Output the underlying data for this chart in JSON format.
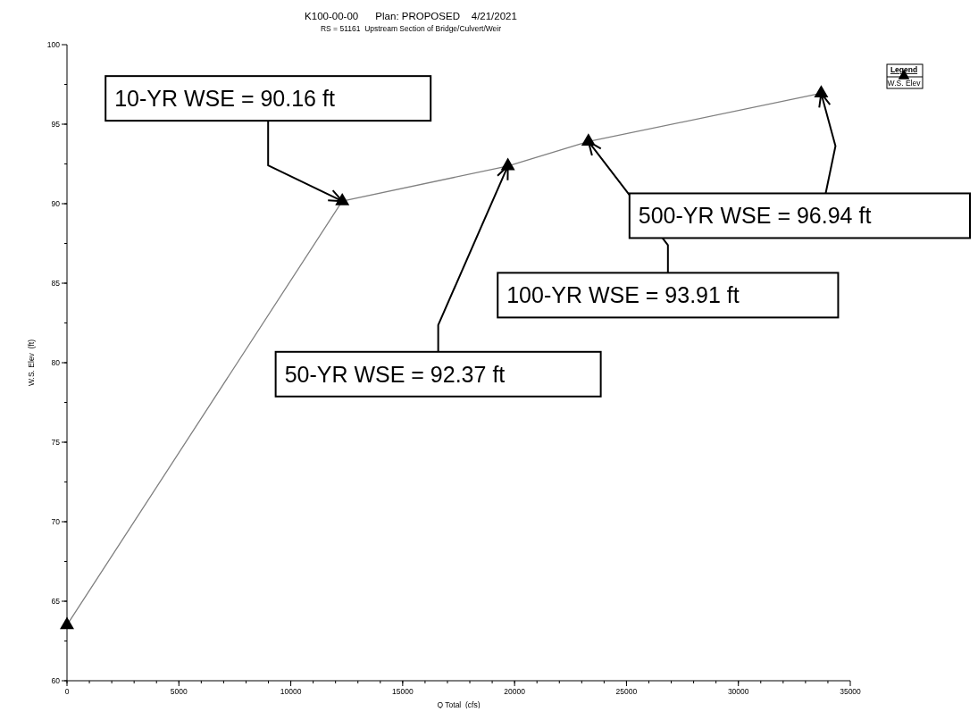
{
  "chart_data": {
    "type": "line",
    "title": "K100-00-00      Plan: PROPOSED    4/21/2021",
    "subtitle": "RS = 51161  Upstream Section of Bridge/Culvert/Weir",
    "xlabel": "Q Total  (cfs)",
    "ylabel": "W.S. Elev  (ft)",
    "x": [
      0,
      12300,
      19700,
      23300,
      33700
    ],
    "series": [
      {
        "name": "W.S. Elev",
        "color": "#808080",
        "values": [
          63.5,
          90.16,
          92.37,
          93.91,
          96.94
        ]
      }
    ],
    "xlim": [
      0,
      35000
    ],
    "xticks": [
      0,
      5000,
      10000,
      15000,
      20000,
      25000,
      30000,
      35000
    ],
    "ylim": [
      60,
      100
    ],
    "yticks": [
      60,
      65,
      70,
      75,
      80,
      85,
      90,
      95,
      100
    ],
    "marker": "triangle",
    "legend": "top right",
    "legend_title": "Legend",
    "grid": false,
    "annotations": [
      {
        "text": "10-YR WSE = 90.16 ft",
        "x": 12300,
        "y": 90.16
      },
      {
        "text": "50-YR WSE = 92.37 ft",
        "x": 19700,
        "y": 92.37
      },
      {
        "text": "100-YR WSE = 93.91 ft",
        "x": 23300,
        "y": 93.91
      },
      {
        "text": "500-YR WSE = 96.94 ft",
        "x": 33700,
        "y": 96.94
      }
    ]
  }
}
